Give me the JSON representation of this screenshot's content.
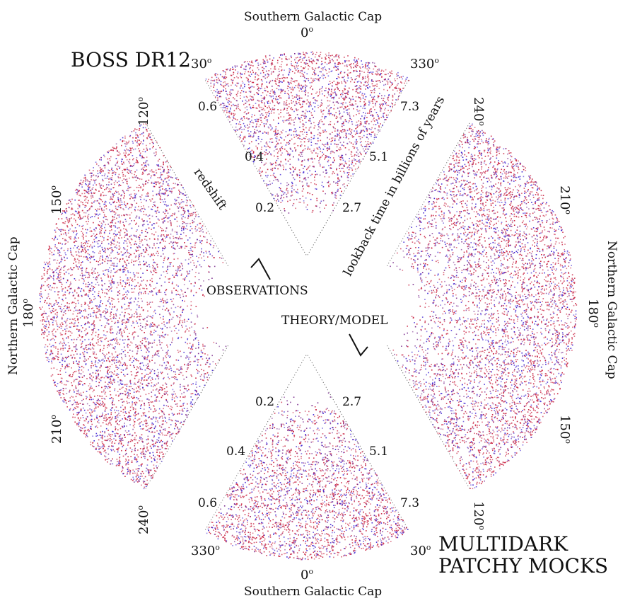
{
  "labels": {
    "boss": "BOSS DR12",
    "multidark_line1": "MULTIDARK",
    "multidark_line2": "PATCHY MOCKS",
    "southern_cap_top": "Southern Galactic Cap",
    "southern_cap_bottom": "Southern Galactic Cap",
    "northern_cap_left": "Northern Galactic Cap",
    "northern_cap_right": "Northern Galactic Cap",
    "observations": "OBSERVATIONS",
    "theory_model": "THEORY/MODEL",
    "redshift": "redshift",
    "lookback": "lookback time in billions of years"
  },
  "angles": {
    "top_0": "0",
    "top_30": "30",
    "top_330": "330",
    "left_120": "120",
    "left_150": "150",
    "left_180": "180",
    "left_210": "210",
    "left_240": "240",
    "right_240": "240",
    "right_210": "210",
    "right_180": "180",
    "right_150": "150",
    "right_120": "120",
    "bottom_0": "0",
    "bottom_330": "330",
    "bottom_30": "30",
    "degree_symbol": "o"
  },
  "redshift_ticks": {
    "top": [
      "0.2",
      "0.4",
      "0.6"
    ],
    "bottom": [
      "0.2",
      "0.4",
      "0.6"
    ]
  },
  "lookback_ticks": {
    "top": [
      "2.7",
      "5.1",
      "7.3"
    ],
    "bottom": [
      "2.7",
      "5.1",
      "7.3"
    ]
  },
  "colors": {
    "red": "#c8203f",
    "blue": "#3b1fd0",
    "purple": "#7a2a8c",
    "dotted_line": "#555555"
  }
}
